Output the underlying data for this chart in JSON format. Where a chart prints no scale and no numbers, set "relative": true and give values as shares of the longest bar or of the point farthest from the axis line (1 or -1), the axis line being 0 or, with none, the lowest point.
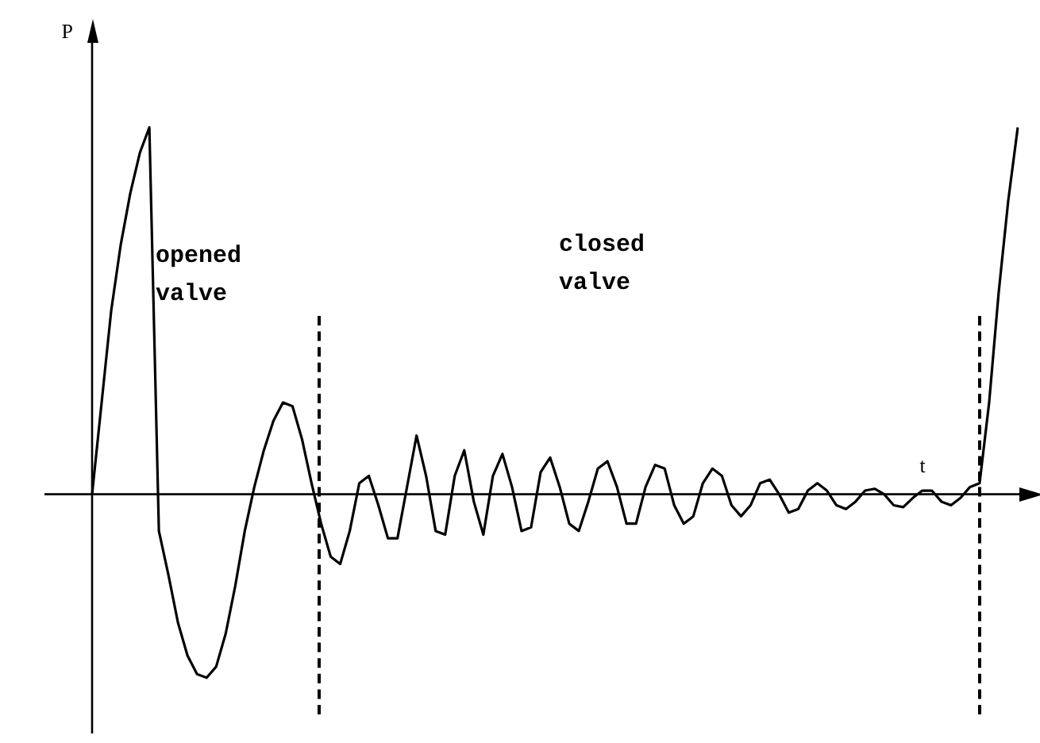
{
  "chart_data": {
    "type": "line",
    "relative": true,
    "xlabel": "t",
    "ylabel": "P",
    "annotations": [
      "opened valve",
      "closed valve"
    ],
    "categories": [
      null,
      null,
      null,
      null,
      null,
      null,
      null,
      null,
      null,
      null,
      null,
      null,
      null,
      null,
      null,
      null,
      null,
      null,
      null,
      null,
      null,
      null,
      null,
      null,
      null,
      null,
      null,
      null,
      null,
      null,
      null,
      null,
      null,
      null,
      null,
      null,
      null,
      null,
      null,
      null,
      null,
      null,
      null,
      null,
      null,
      null,
      null,
      null,
      null,
      null,
      null,
      null,
      null,
      null,
      null,
      null,
      null,
      null,
      null,
      null,
      null,
      null,
      null,
      null,
      null,
      null,
      null,
      null,
      null,
      null,
      null,
      null,
      null,
      null,
      null,
      null,
      null,
      null,
      null,
      null,
      null,
      null,
      null,
      null,
      null,
      null,
      null,
      null,
      null,
      null,
      null,
      null,
      null,
      null,
      null,
      null,
      null,
      null
    ],
    "series": [
      {
        "color": "#000000",
        "values": [
          0,
          0.25,
          0.5,
          0.68,
          0.82,
          0.93,
          1.0,
          -0.1,
          -0.22,
          -0.35,
          -0.44,
          -0.49,
          -0.5,
          -0.47,
          -0.38,
          -0.25,
          -0.1,
          0.02,
          0.12,
          0.2,
          0.25,
          0.24,
          0.15,
          0.03,
          -0.08,
          -0.17,
          -0.19,
          -0.1,
          0.03,
          0.05,
          -0.03,
          -0.12,
          -0.12,
          0.02,
          0.16,
          0.05,
          -0.1,
          -0.11,
          0.05,
          0.12,
          -0.02,
          -0.11,
          0.05,
          0.11,
          0.02,
          -0.1,
          -0.09,
          0.06,
          0.1,
          0.02,
          -0.08,
          -0.1,
          -0.02,
          0.07,
          0.09,
          0.02,
          -0.08,
          -0.08,
          0.02,
          0.08,
          0.07,
          -0.03,
          -0.08,
          -0.06,
          0.03,
          0.07,
          0.05,
          -0.03,
          -0.06,
          -0.03,
          0.03,
          0.04,
          0,
          -0.05,
          -0.04,
          0.01,
          0.03,
          0.01,
          -0.03,
          -0.04,
          -0.02,
          0.01,
          0.015,
          0,
          -0.03,
          -0.035,
          -0.01,
          0.01,
          0.01,
          -0.02,
          -0.03,
          -0.01,
          0.02,
          0.03,
          0.25,
          0.55,
          0.8,
          1.0
        ]
      }
    ],
    "legend": false,
    "marker": "none",
    "line_style": "solid"
  }
}
